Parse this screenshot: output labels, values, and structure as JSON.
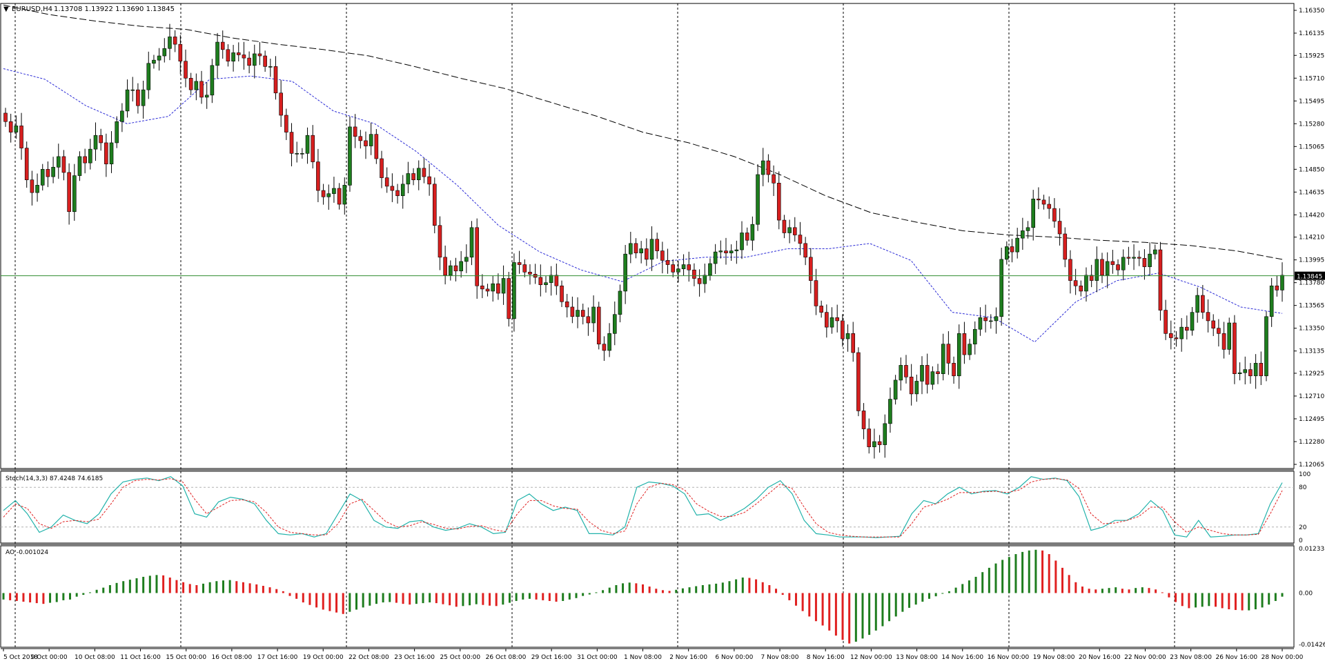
{
  "window": {
    "symbol_label": "EURUSD,H4",
    "ohlc_label": "1.13708 1.13922 1.13690 1.13845",
    "menu_arrow": "triangle-down-icon"
  },
  "colors": {
    "background": "#ffffff",
    "bull_candle": "#1e7d1e",
    "bear_candle": "#d61f1f",
    "candle_outline": "#000000",
    "ma_fast": "#2a2ad6",
    "ma_slow": "#000000",
    "price_line": "#2e8b2e",
    "stoch_main": "#20b2aa",
    "stoch_signal": "#e02020",
    "ao_up": "#1e7d1e",
    "ao_down": "#e02020",
    "grid_separator": "#000000"
  },
  "chart_data": [
    {
      "type": "candlestick",
      "title": "EURUSD,H4",
      "ylim": [
        1.12065,
        1.1635
      ],
      "y_ticks": [
        "1.16350",
        "1.16135",
        "1.15925",
        "1.15710",
        "1.15495",
        "1.15280",
        "1.15065",
        "1.14850",
        "1.14635",
        "1.14420",
        "1.14210",
        "1.13995",
        "1.13780",
        "1.13565",
        "1.13350",
        "1.13135",
        "1.12925",
        "1.12710",
        "1.12495",
        "1.12280",
        "1.12065"
      ],
      "current_price_label": "1.13845",
      "current_price": 1.13845,
      "x_labels": [
        "5 Oct 2018",
        "9 Oct 00:00",
        "10 Oct 08:00",
        "11 Oct 16:00",
        "15 Oct 00:00",
        "16 Oct 08:00",
        "17 Oct 16:00",
        "19 Oct 00:00",
        "22 Oct 08:00",
        "23 Oct 16:00",
        "25 Oct 00:00",
        "26 Oct 08:00",
        "29 Oct 16:00",
        "31 Oct 00:00",
        "1 Nov 08:00",
        "2 Nov 16:00",
        "6 Nov 00:00",
        "7 Nov 08:00",
        "8 Nov 16:00",
        "12 Nov 00:00",
        "13 Nov 08:00",
        "14 Nov 16:00",
        "16 Nov 00:00",
        "19 Nov 08:00",
        "20 Nov 16:00",
        "22 Nov 00:00",
        "23 Nov 08:00",
        "26 Nov 16:00",
        "28 Nov 00:00"
      ],
      "closes": [
        1.153,
        1.152,
        1.1526,
        1.1505,
        1.1475,
        1.1463,
        1.147,
        1.1485,
        1.1478,
        1.1487,
        1.1497,
        1.1482,
        1.1445,
        1.1479,
        1.1497,
        1.1491,
        1.1504,
        1.1517,
        1.151,
        1.149,
        1.151,
        1.153,
        1.154,
        1.156,
        1.156,
        1.1545,
        1.156,
        1.1585,
        1.1588,
        1.1592,
        1.1599,
        1.161,
        1.1603,
        1.1587,
        1.1571,
        1.156,
        1.1568,
        1.1553,
        1.1555,
        1.1583,
        1.1605,
        1.1598,
        1.1587,
        1.1595,
        1.1593,
        1.159,
        1.1583,
        1.1594,
        1.1592,
        1.1582,
        1.1582,
        1.1557,
        1.1536,
        1.152,
        1.15,
        1.15,
        1.15,
        1.1517,
        1.1492,
        1.1465,
        1.1459,
        1.1462,
        1.1467,
        1.1452,
        1.147,
        1.1525,
        1.1516,
        1.1512,
        1.1507,
        1.1518,
        1.1495,
        1.1477,
        1.1469,
        1.1465,
        1.146,
        1.1471,
        1.1481,
        1.1475,
        1.1486,
        1.1478,
        1.1471,
        1.1432,
        1.1402,
        1.1385,
        1.1394,
        1.1389,
        1.1398,
        1.1402,
        1.143,
        1.1375,
        1.1372,
        1.137,
        1.1377,
        1.1368,
        1.1382,
        1.1344,
        1.1397,
        1.1395,
        1.1388,
        1.1386,
        1.1383,
        1.1376,
        1.1378,
        1.1385,
        1.1375,
        1.136,
        1.1355,
        1.1346,
        1.1352,
        1.1346,
        1.134,
        1.1355,
        1.132,
        1.1314,
        1.133,
        1.1348,
        1.137,
        1.1405,
        1.1415,
        1.1406,
        1.141,
        1.14,
        1.1419,
        1.1408,
        1.1399,
        1.1395,
        1.1388,
        1.1391,
        1.1395,
        1.139,
        1.1382,
        1.1377,
        1.1385,
        1.1396,
        1.1407,
        1.1408,
        1.1406,
        1.1408,
        1.1409,
        1.1425,
        1.1418,
        1.1433,
        1.148,
        1.1493,
        1.148,
        1.1472,
        1.1437,
        1.1425,
        1.143,
        1.1423,
        1.1415,
        1.1402,
        1.138,
        1.1356,
        1.135,
        1.1336,
        1.1345,
        1.1342,
        1.1325,
        1.133,
        1.1312,
        1.1257,
        1.124,
        1.1223,
        1.1228,
        1.1225,
        1.1245,
        1.1268,
        1.1286,
        1.13,
        1.1289,
        1.1273,
        1.1285,
        1.13,
        1.1282,
        1.1294,
        1.1292,
        1.132,
        1.1302,
        1.129,
        1.133,
        1.131,
        1.132,
        1.1334,
        1.1345,
        1.1342,
        1.1342,
        1.1346,
        1.14,
        1.1412,
        1.1407,
        1.142,
        1.1427,
        1.143,
        1.1457,
        1.1456,
        1.1452,
        1.1448,
        1.1436,
        1.1424,
        1.14,
        1.138,
        1.1375,
        1.137,
        1.1385,
        1.138,
        1.14,
        1.1385,
        1.1398,
        1.1395,
        1.139,
        1.1402,
        1.1401,
        1.1402,
        1.1401,
        1.1393,
        1.1405,
        1.1409,
        1.1352,
        1.133,
        1.1326,
        1.1325,
        1.1336,
        1.1333,
        1.135,
        1.1366,
        1.135,
        1.1342,
        1.1335,
        1.133,
        1.1315,
        1.134,
        1.1292,
        1.1293,
        1.1296,
        1.129,
        1.1302,
        1.129,
        1.1346,
        1.1375,
        1.1371,
        1.1385
      ],
      "ma_fast": [
        1.158,
        1.157,
        1.1545,
        1.1528,
        1.1535,
        1.157,
        1.1573,
        1.1568,
        1.154,
        1.1528,
        1.1502,
        1.147,
        1.1432,
        1.1407,
        1.139,
        1.1379,
        1.1398,
        1.1402,
        1.1402,
        1.141,
        1.141,
        1.1415,
        1.1399,
        1.135,
        1.1345,
        1.1322,
        1.136,
        1.138,
        1.1387,
        1.1374,
        1.1355,
        1.1349
      ],
      "ma_slow": [
        1.164,
        1.1631,
        1.1625,
        1.162,
        1.1617,
        1.1609,
        1.1603,
        1.1598,
        1.1592,
        1.1582,
        1.1571,
        1.1561,
        1.1548,
        1.1535,
        1.152,
        1.151,
        1.1497,
        1.148,
        1.146,
        1.1444,
        1.1435,
        1.1427,
        1.1423,
        1.1421,
        1.1418,
        1.1416,
        1.1413,
        1.1408,
        1.14
      ]
    },
    {
      "type": "line",
      "title": "Stoch(14,3,3) 87.4248 74.6185",
      "ylim": [
        0,
        100
      ],
      "levels": [
        20,
        80
      ],
      "y_ticks": [
        "100",
        "80",
        "20",
        "0"
      ],
      "series": [
        {
          "name": "main",
          "values": [
            45,
            60,
            40,
            12,
            20,
            38,
            30,
            25,
            40,
            70,
            88,
            92,
            94,
            90,
            96,
            82,
            40,
            35,
            58,
            65,
            62,
            55,
            30,
            10,
            8,
            10,
            5,
            10,
            40,
            70,
            60,
            30,
            20,
            18,
            28,
            30,
            20,
            15,
            18,
            25,
            20,
            10,
            12,
            60,
            70,
            55,
            45,
            50,
            45,
            10,
            10,
            8,
            20,
            80,
            88,
            86,
            82,
            70,
            38,
            40,
            30,
            38,
            48,
            62,
            80,
            90,
            70,
            30,
            10,
            8,
            5,
            5,
            5,
            4,
            5,
            6,
            40,
            60,
            55,
            70,
            80,
            70,
            74,
            75,
            70,
            80,
            96,
            92,
            94,
            90,
            66,
            15,
            20,
            30,
            30,
            40,
            60,
            45,
            8,
            5,
            30,
            5,
            6,
            8,
            8,
            10,
            55,
            87
          ]
        },
        {
          "name": "signal",
          "values": [
            35,
            55,
            48,
            25,
            18,
            28,
            30,
            28,
            32,
            55,
            80,
            90,
            92,
            91,
            93,
            88,
            62,
            40,
            50,
            60,
            61,
            58,
            42,
            20,
            12,
            10,
            8,
            8,
            25,
            55,
            62,
            45,
            28,
            20,
            22,
            28,
            24,
            18,
            17,
            21,
            22,
            16,
            13,
            40,
            60,
            60,
            52,
            48,
            47,
            28,
            15,
            10,
            14,
            55,
            80,
            86,
            84,
            76,
            55,
            44,
            36,
            36,
            42,
            55,
            70,
            85,
            78,
            50,
            25,
            12,
            8,
            6,
            5,
            5,
            5,
            5,
            25,
            50,
            55,
            62,
            72,
            72,
            73,
            74,
            72,
            76,
            88,
            92,
            93,
            91,
            78,
            40,
            25,
            26,
            30,
            36,
            50,
            50,
            28,
            12,
            20,
            15,
            10,
            8,
            8,
            9,
            40,
            75
          ]
        }
      ]
    },
    {
      "type": "bar",
      "title": "AO -0.001024",
      "ylim": [
        -0.014262,
        0.012338
      ],
      "y_ticks": [
        "0.012338",
        "0.00",
        "-0.014262"
      ],
      "zero_label": "0.00",
      "values": [
        -0.0018,
        -0.002,
        -0.0022,
        -0.0024,
        -0.0026,
        -0.0028,
        -0.003,
        -0.0027,
        -0.0025,
        -0.002,
        -0.0018,
        -0.001,
        -0.0005,
        0.0002,
        0.0009,
        0.0015,
        0.0022,
        0.0028,
        0.0033,
        0.0037,
        0.0041,
        0.0045,
        0.0048,
        0.005,
        0.0049,
        0.0043,
        0.0036,
        0.003,
        0.0025,
        0.0022,
        0.0026,
        0.003,
        0.0033,
        0.0035,
        0.0036,
        0.0033,
        0.003,
        0.0027,
        0.0024,
        0.002,
        0.0016,
        0.0011,
        0.0005,
        -0.0008,
        -0.0016,
        -0.0026,
        -0.0033,
        -0.004,
        -0.0046,
        -0.005,
        -0.0054,
        -0.0058,
        -0.0052,
        -0.0046,
        -0.004,
        -0.0035,
        -0.003,
        -0.0026,
        -0.0025,
        -0.0027,
        -0.003,
        -0.0032,
        -0.003,
        -0.0028,
        -0.0026,
        -0.0028,
        -0.0031,
        -0.0034,
        -0.0038,
        -0.0036,
        -0.0034,
        -0.0031,
        -0.0033,
        -0.0035,
        -0.0036,
        -0.0032,
        -0.0027,
        -0.0022,
        -0.0018,
        -0.0016,
        -0.0018,
        -0.002,
        -0.0022,
        -0.0024,
        -0.0022,
        -0.0018,
        -0.0014,
        -0.0008,
        -0.0004,
        0.0002,
        0.0008,
        0.0015,
        0.0022,
        0.0027,
        0.0029,
        0.0027,
        0.0024,
        0.0018,
        0.0012,
        0.0008,
        0.0006,
        0.0009,
        0.0013,
        0.0016,
        0.0019,
        0.0022,
        0.0024,
        0.0026,
        0.0029,
        0.0033,
        0.0038,
        0.0043,
        0.0042,
        0.0038,
        0.003,
        0.0022,
        0.0012,
        -0.0005,
        -0.002,
        -0.0035,
        -0.005,
        -0.0065,
        -0.0078,
        -0.009,
        -0.0104,
        -0.0118,
        -0.013,
        -0.014,
        -0.0135,
        -0.0126,
        -0.0116,
        -0.0104,
        -0.0092,
        -0.0078,
        -0.0065,
        -0.0052,
        -0.0041,
        -0.0032,
        -0.0024,
        -0.0016,
        -0.0009,
        -0.0002,
        0.0005,
        0.0015,
        0.0025,
        0.0035,
        0.0045,
        0.0058,
        0.007,
        0.0082,
        0.0092,
        0.01,
        0.0108,
        0.0114,
        0.0118,
        0.012,
        0.0118,
        0.0108,
        0.009,
        0.007,
        0.005,
        0.003,
        0.0018,
        0.0012,
        0.001,
        0.0012,
        0.0014,
        0.0016,
        0.0012,
        0.001,
        0.0014,
        0.0016,
        0.0014,
        0.001,
        0.0002,
        -0.0012,
        -0.0025,
        -0.0036,
        -0.0042,
        -0.004,
        -0.0038,
        -0.0036,
        -0.0038,
        -0.0042,
        -0.0045,
        -0.0047,
        -0.0048,
        -0.0048,
        -0.0045,
        -0.004,
        -0.0032,
        -0.0022,
        -0.001
      ]
    }
  ]
}
